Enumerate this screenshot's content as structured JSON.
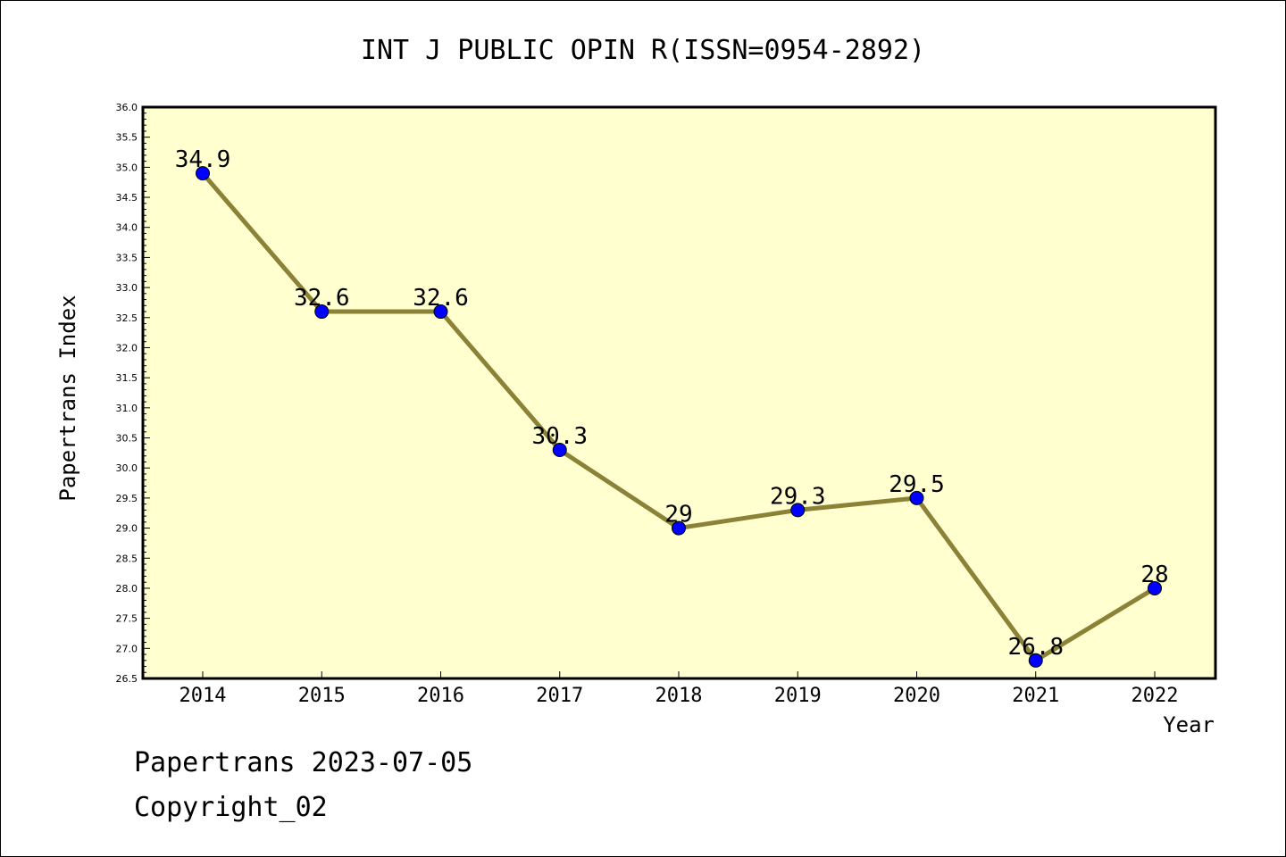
{
  "chart_data": {
    "type": "line",
    "title": "INT J PUBLIC OPIN R(ISSN=0954-2892)",
    "xlabel": "Year",
    "ylabel": "Papertrans Index",
    "categories": [
      "2014",
      "2015",
      "2016",
      "2017",
      "2018",
      "2019",
      "2020",
      "2021",
      "2022"
    ],
    "values": [
      34.9,
      32.6,
      32.6,
      30.3,
      29,
      29.3,
      29.5,
      26.8,
      28
    ],
    "data_labels": [
      "34.9",
      "32.6",
      "32.6",
      "30.3",
      "29",
      "29.3",
      "29.5",
      "26.8",
      "28"
    ],
    "ylim": [
      26.5,
      36.0
    ],
    "ytick_step": 0.5,
    "grid": false,
    "legend": "none",
    "colors": {
      "plot_background": "#ffffd0",
      "line": "#8b8237",
      "marker": "#0000ff"
    }
  },
  "footer": {
    "line1": "Papertrans 2023-07-05",
    "line2": "Copyright_02"
  }
}
